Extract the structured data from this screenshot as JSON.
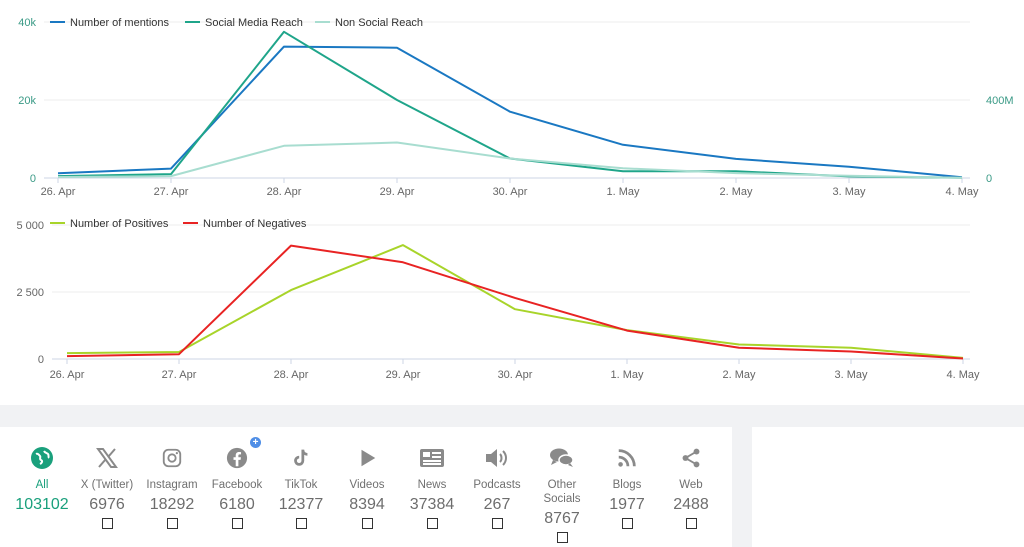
{
  "chart_data": [
    {
      "type": "line",
      "categories": [
        "26. Apr",
        "27. Apr",
        "28. Apr",
        "29. Apr",
        "30. Apr",
        "1. May",
        "2. May",
        "3. May",
        "4. May"
      ],
      "left_axis": {
        "ticks": [
          "0",
          "20k",
          "40k"
        ],
        "ylim": [
          0,
          40000
        ]
      },
      "right_axis": {
        "ticks": [
          "0",
          "400M"
        ],
        "ylim": [
          0,
          800000000
        ]
      },
      "series": [
        {
          "name": "Number of mentions",
          "axis": "left",
          "color": "#1a78c2",
          "values": [
            1200,
            2400,
            33700,
            33400,
            17000,
            8500,
            4900,
            2900,
            200
          ]
        },
        {
          "name": "Social Media Reach",
          "axis": "right",
          "color": "#1fa58a",
          "values": [
            10000000,
            20000000,
            750000000,
            400000000,
            100000000,
            35000000,
            35000000,
            8000000,
            1000000
          ]
        },
        {
          "name": "Non Social Reach",
          "axis": "right",
          "color": "#a8ddd0",
          "values": [
            5000000,
            10000000,
            165000000,
            182000000,
            100000000,
            50000000,
            25000000,
            12000000,
            1000000
          ]
        }
      ]
    },
    {
      "type": "line",
      "categories": [
        "26. Apr",
        "27. Apr",
        "28. Apr",
        "29. Apr",
        "30. Apr",
        "1. May",
        "2. May",
        "3. May",
        "4. May"
      ],
      "left_axis": {
        "ticks": [
          "0",
          "2 500",
          "5 000"
        ],
        "ylim": [
          0,
          5000
        ]
      },
      "series": [
        {
          "name": "Number of Positives",
          "color": "#a8d42a",
          "values": [
            220,
            260,
            2570,
            4250,
            1860,
            1080,
            540,
            420,
            40
          ]
        },
        {
          "name": "Number of Negatives",
          "color": "#e82323",
          "values": [
            110,
            180,
            4230,
            3610,
            2280,
            1060,
            420,
            280,
            20
          ]
        }
      ]
    }
  ],
  "sources": [
    {
      "label": "All",
      "count": "103102",
      "icon": "globe-icon",
      "active": true,
      "checkbox": false,
      "plus": false
    },
    {
      "label": "X (Twitter)",
      "count": "6976",
      "icon": "x-twitter-icon",
      "active": false,
      "checkbox": true,
      "plus": false
    },
    {
      "label": "Instagram",
      "count": "18292",
      "icon": "instagram-icon",
      "active": false,
      "checkbox": true,
      "plus": false
    },
    {
      "label": "Facebook",
      "count": "6180",
      "icon": "facebook-icon",
      "active": false,
      "checkbox": true,
      "plus": true
    },
    {
      "label": "TikTok",
      "count": "12377",
      "icon": "tiktok-icon",
      "active": false,
      "checkbox": true,
      "plus": false
    },
    {
      "label": "Videos",
      "count": "8394",
      "icon": "play-icon",
      "active": false,
      "checkbox": true,
      "plus": false
    },
    {
      "label": "News",
      "count": "37384",
      "icon": "newspaper-icon",
      "active": false,
      "checkbox": true,
      "plus": false
    },
    {
      "label": "Podcasts",
      "count": "267",
      "icon": "speaker-icon",
      "active": false,
      "checkbox": true,
      "plus": false
    },
    {
      "label": "Other\nSocials",
      "count": "8767",
      "icon": "chat-icon",
      "active": false,
      "checkbox": true,
      "plus": false
    },
    {
      "label": "Blogs",
      "count": "1977",
      "icon": "rss-icon",
      "active": false,
      "checkbox": true,
      "plus": false
    },
    {
      "label": "Web",
      "count": "2488",
      "icon": "share-icon",
      "active": false,
      "checkbox": true,
      "plus": false
    }
  ],
  "colors": {
    "accent": "#1aa07c",
    "icon_gray": "#8a8a8a"
  }
}
